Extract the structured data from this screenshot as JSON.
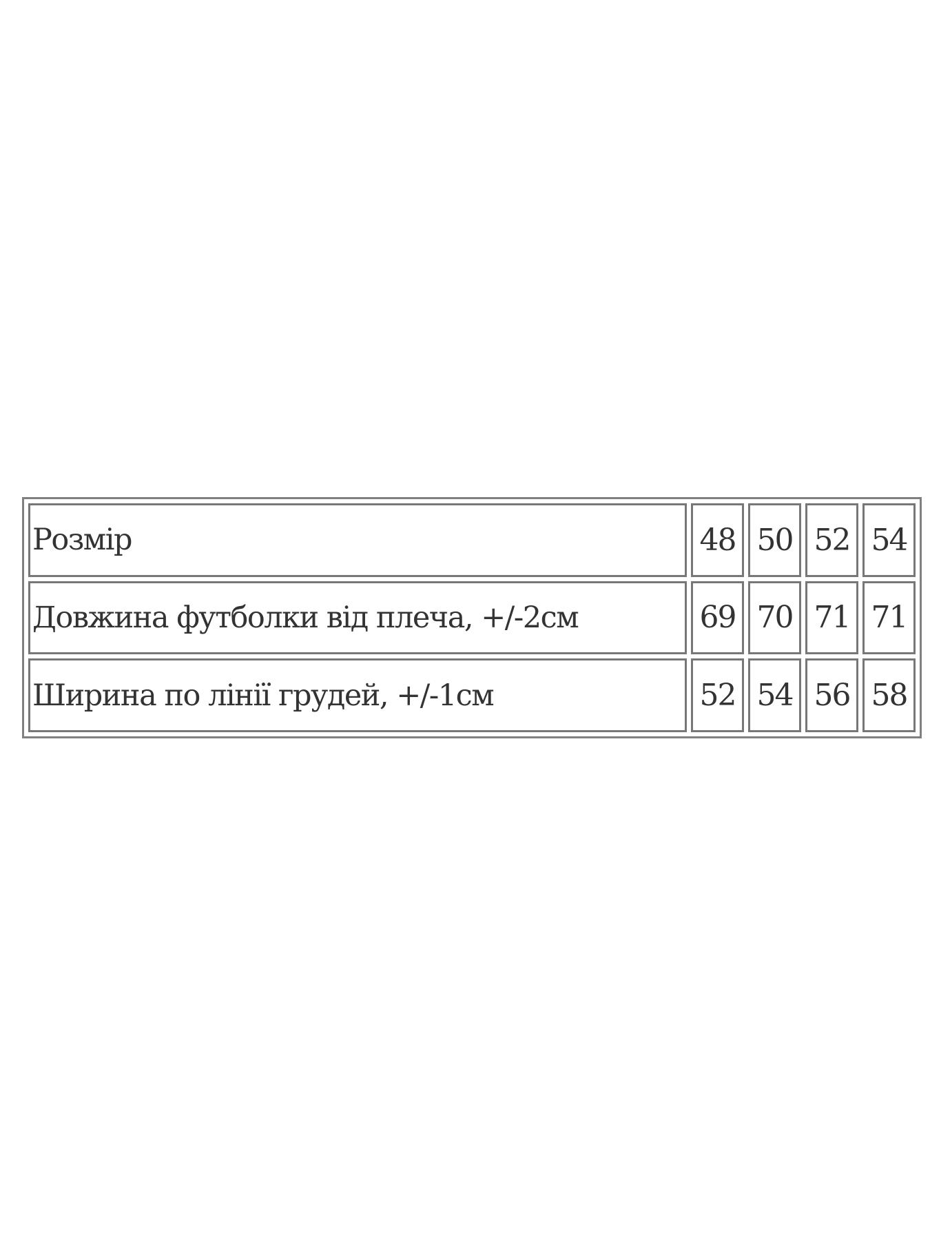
{
  "size_table": {
    "rows": [
      {
        "label": "Розмір",
        "values": [
          "48",
          "50",
          "52",
          "54"
        ]
      },
      {
        "label": "Довжина футболки від плеча, +/-2см",
        "values": [
          "69",
          "70",
          "71",
          "71"
        ]
      },
      {
        "label": "Ширина по лінії грудей, +/-1см",
        "values": [
          "52",
          "54",
          "56",
          "58"
        ]
      }
    ]
  }
}
